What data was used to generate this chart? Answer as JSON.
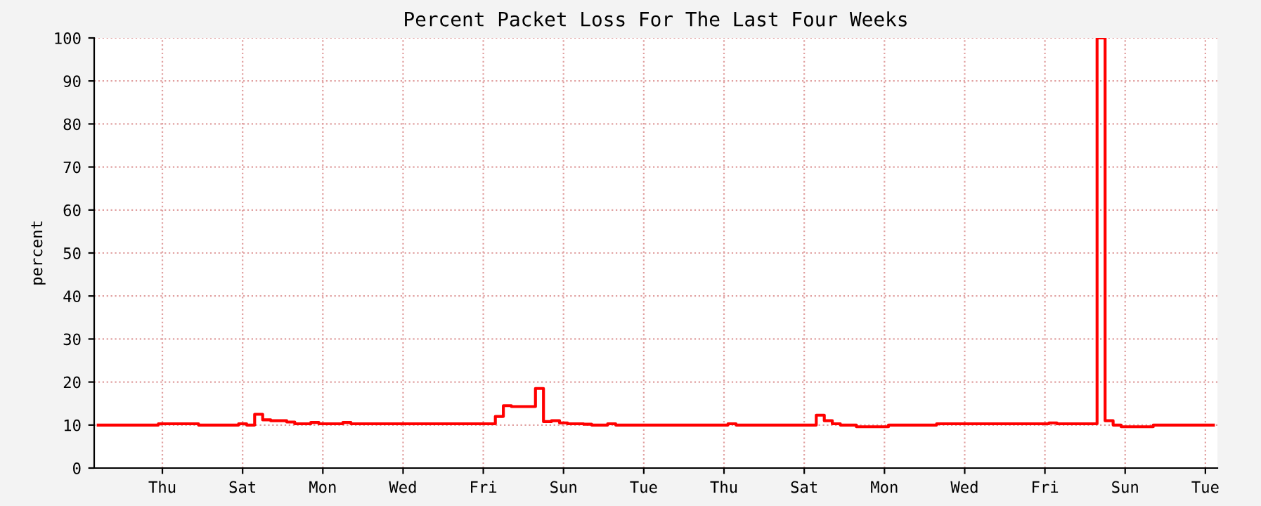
{
  "chart_data": {
    "type": "step",
    "title": "Percent Packet Loss For The Last Four Weeks",
    "ylabel": "percent",
    "categories": [
      null,
      null,
      null,
      null,
      null,
      null,
      null,
      null,
      "Thu",
      null,
      null,
      null,
      null,
      null,
      null,
      null,
      null,
      null,
      "Sat",
      null,
      null,
      null,
      null,
      null,
      null,
      null,
      null,
      null,
      "Mon",
      null,
      null,
      null,
      null,
      null,
      null,
      null,
      null,
      null,
      "Wed",
      null,
      null,
      null,
      null,
      null,
      null,
      null,
      null,
      null,
      "Fri",
      null,
      null,
      null,
      null,
      null,
      null,
      null,
      null,
      null,
      "Sun",
      null,
      null,
      null,
      null,
      null,
      null,
      null,
      null,
      null,
      "Tue",
      null,
      null,
      null,
      null,
      null,
      null,
      null,
      null,
      null,
      "Thu",
      null,
      null,
      null,
      null,
      null,
      null,
      null,
      null,
      null,
      "Sat",
      null,
      null,
      null,
      null,
      null,
      null,
      null,
      null,
      null,
      "Mon",
      null,
      null,
      null,
      null,
      null,
      null,
      null,
      null,
      null,
      "Wed",
      null,
      null,
      null,
      null,
      null,
      null,
      null,
      null,
      null,
      "Fri",
      null,
      null,
      null,
      null,
      null,
      null,
      null,
      null,
      null,
      "Sun",
      null,
      null,
      null,
      null,
      null,
      null,
      null,
      null,
      null,
      "Tue",
      null
    ],
    "series": [
      {
        "color": "#ff0000",
        "values": [
          10,
          10,
          10,
          10,
          10,
          10,
          10,
          10,
          10.3,
          10.3,
          10.3,
          10.3,
          10.3,
          10,
          10,
          10,
          10,
          10,
          10.3,
          10,
          12.5,
          11.2,
          11,
          11,
          10.7,
          10.3,
          10.3,
          10.6,
          10.3,
          10.3,
          10.3,
          10.6,
          10.3,
          10.3,
          10.3,
          10.3,
          10.3,
          10.3,
          10.3,
          10.3,
          10.3,
          10.3,
          10.3,
          10.3,
          10.3,
          10.3,
          10.3,
          10.3,
          10.3,
          10.3,
          12,
          14.5,
          14.3,
          14.3,
          14.3,
          18.5,
          10.8,
          11,
          10.5,
          10.3,
          10.3,
          10.2,
          10,
          10,
          10.3,
          10,
          10,
          10,
          10,
          10,
          10,
          10,
          10,
          10,
          10,
          10,
          10,
          10,
          10,
          10.3,
          10,
          10,
          10,
          10,
          10,
          10,
          10,
          10,
          10,
          10,
          12.3,
          11,
          10.3,
          10,
          10,
          9.6,
          9.6,
          9.6,
          9.6,
          10,
          10,
          10,
          10,
          10,
          10,
          10.3,
          10.3,
          10.3,
          10.3,
          10.3,
          10.3,
          10.3,
          10.3,
          10.3,
          10.3,
          10.3,
          10.3,
          10.3,
          10.3,
          10.5,
          10.3,
          10.3,
          10.3,
          10.3,
          10.3,
          100,
          11,
          10,
          9.6,
          9.6,
          9.6,
          9.6,
          10,
          10,
          10,
          10,
          10,
          10,
          10,
          10
        ]
      }
    ],
    "ylim": [
      0,
      100
    ],
    "yticks": [
      0,
      10,
      20,
      30,
      40,
      50,
      60,
      70,
      80,
      90,
      100
    ],
    "grid": true,
    "line_style": "solid",
    "marker": "none"
  }
}
